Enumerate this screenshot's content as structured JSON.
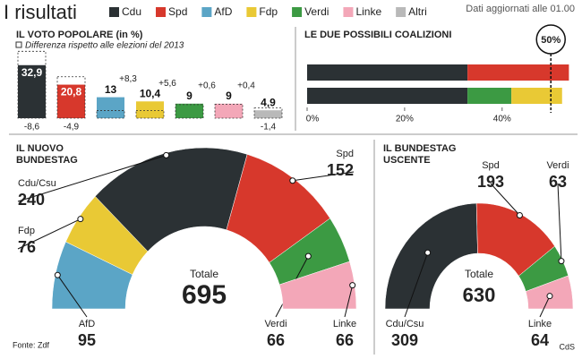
{
  "header": {
    "title": "I risultati",
    "updated": "Dati aggiornati alle 01.00"
  },
  "legend": [
    {
      "name": "Cdu",
      "color": "#2b3134"
    },
    {
      "name": "Spd",
      "color": "#d7382c"
    },
    {
      "name": "AfD",
      "color": "#5ba5c6"
    },
    {
      "name": "Fdp",
      "color": "#e9c935"
    },
    {
      "name": "Verdi",
      "color": "#3c9a43"
    },
    {
      "name": "Linke",
      "color": "#f3a7b8"
    },
    {
      "name": "Altri",
      "color": "#b9b9b9"
    }
  ],
  "chart_data": [
    {
      "type": "bar",
      "title": "IL VOTO POPOLARE (in %)",
      "subtitle": "Differenza rispetto alle elezioni del 2013",
      "colors": [
        "#2b3134",
        "#d7382c",
        "#5ba5c6",
        "#e9c935",
        "#3c9a43",
        "#f3a7b8",
        "#b9b9b9"
      ],
      "values": [
        32.9,
        20.8,
        13,
        10.4,
        9,
        9,
        4.9
      ],
      "value_labels": [
        "32,9",
        "20,8",
        "13",
        "10,4",
        "9",
        "9",
        "4,9"
      ],
      "changes": [
        -8.6,
        -4.9,
        8.3,
        5.6,
        0.6,
        0.4,
        -1.4
      ],
      "change_labels": [
        "-8,6",
        "-4,9",
        "+8,3",
        "+5,6",
        "+0,6",
        "+0,4",
        "-1,4"
      ]
    },
    {
      "type": "stacked_barh",
      "title": "LE DUE POSSIBILI COALIZIONI",
      "xlim": [
        0,
        54
      ],
      "xticks": [
        {
          "value": 0,
          "label": "0%"
        },
        {
          "value": 20,
          "label": "20%"
        },
        {
          "value": 40,
          "label": "40%"
        }
      ],
      "threshold": {
        "value": 50,
        "label": "50%"
      },
      "series": [
        {
          "color": "#2b3134",
          "values": [
            32.9,
            32.9
          ]
        },
        {
          "color": "#d7382c",
          "values": [
            20.8,
            null
          ]
        },
        {
          "color": "#3c9a43",
          "values": [
            null,
            9
          ]
        },
        {
          "color": "#e9c935",
          "values": [
            null,
            10.4
          ]
        }
      ]
    },
    {
      "type": "hemicycle",
      "title_lines": [
        "IL NUOVO",
        "BUNDESTAG"
      ],
      "total_label": "Totale",
      "total": 695,
      "labels": [
        "AfD",
        "Fdp",
        "Cdu/Csu",
        "Spd",
        "Verdi",
        "Linke"
      ],
      "values": [
        95,
        76,
        240,
        152,
        66,
        66
      ],
      "colors": [
        "#5ba5c6",
        "#e9c935",
        "#2b3134",
        "#d7382c",
        "#3c9a43",
        "#f3a7b8"
      ]
    },
    {
      "type": "hemicycle",
      "title_lines": [
        "IL BUNDESTAG",
        "USCENTE"
      ],
      "total_label": "Totale",
      "total": 630,
      "labels": [
        "Cdu/Csu",
        "Spd",
        "Verdi",
        "Linke"
      ],
      "values": [
        309,
        193,
        63,
        64
      ],
      "colors": [
        "#2b3134",
        "#d7382c",
        "#3c9a43",
        "#f3a7b8"
      ]
    }
  ],
  "footer": {
    "source": "Fonte: Zdf",
    "credit": "CdS"
  }
}
